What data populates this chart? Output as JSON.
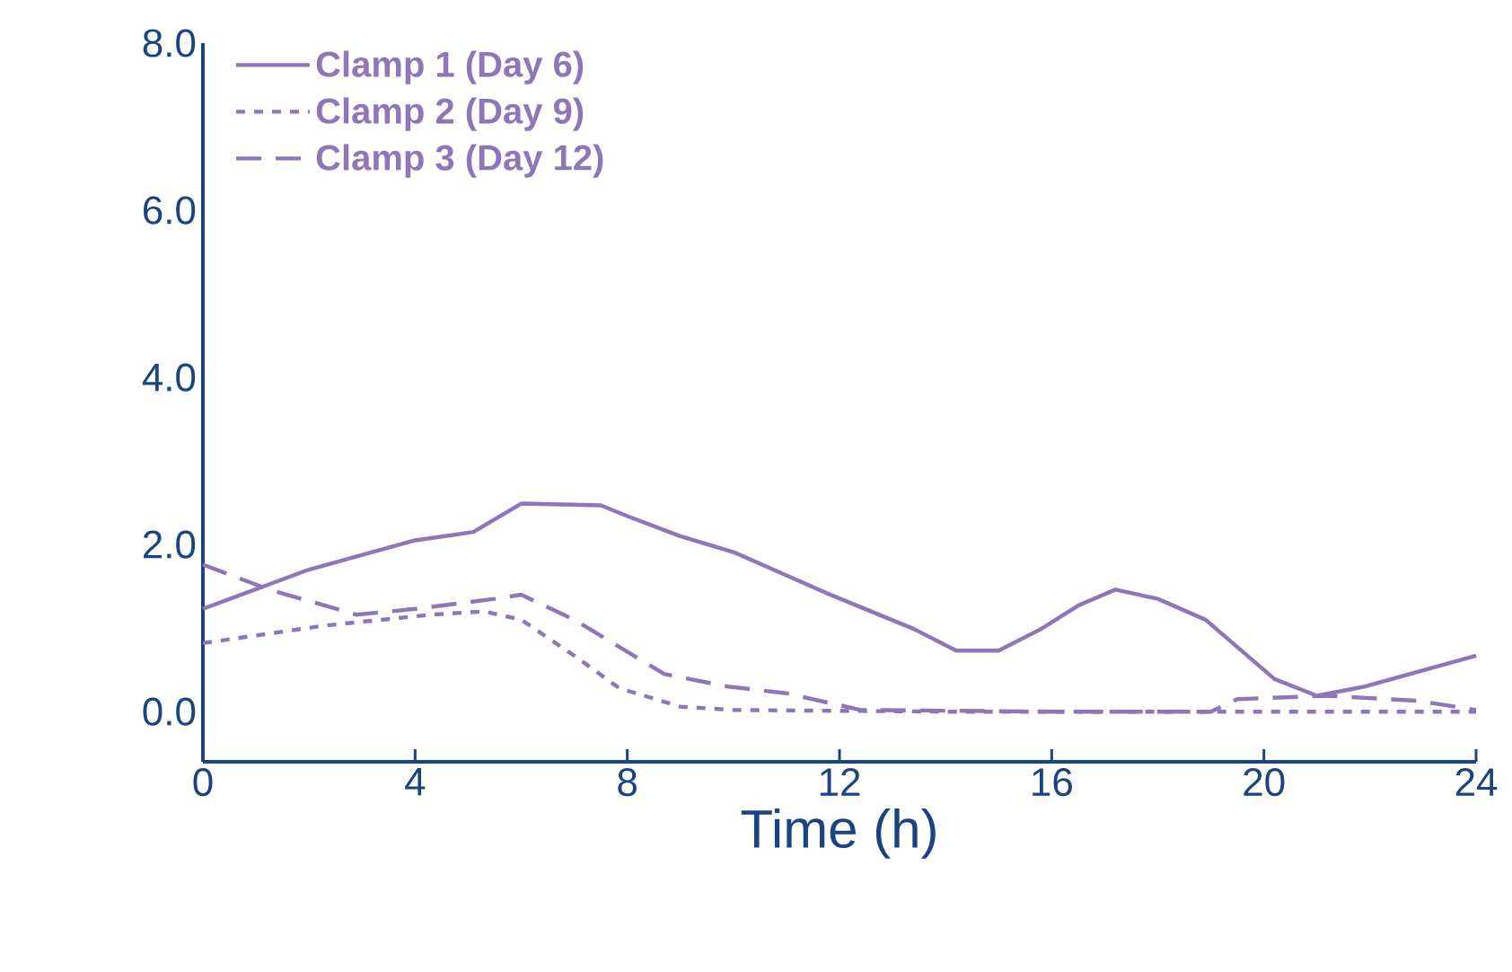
{
  "chart_data": {
    "type": "line",
    "xlabel": "Time (h)",
    "xlim": [
      0,
      24
    ],
    "ylim": [
      -0.6,
      8
    ],
    "xticks": [
      0,
      4,
      8,
      12,
      16,
      20,
      24
    ],
    "yticks": [
      {
        "value": 0,
        "label": "0.0"
      },
      {
        "value": 2,
        "label": "2.0"
      },
      {
        "value": 4,
        "label": "4.0"
      },
      {
        "value": 6,
        "label": "6.0"
      },
      {
        "value": 8,
        "label": "8.0"
      }
    ],
    "legend": "top left",
    "grid": false,
    "marker": "none",
    "series": [
      {
        "name": "Clamp 1 (Day 6)",
        "color": "#8e76b8",
        "line_style": "solid",
        "x": [
          0,
          2,
          4,
          5.1,
          6,
          7.5,
          8,
          9,
          10,
          11.75,
          13.4,
          14.2,
          15,
          15.8,
          16.5,
          17.2,
          18,
          18.9,
          20.2,
          21,
          21.9,
          24
        ],
        "values": [
          1.23,
          1.7,
          2.05,
          2.15,
          2.49,
          2.47,
          2.34,
          2.1,
          1.91,
          1.42,
          0.99,
          0.73,
          0.73,
          0.99,
          1.27,
          1.46,
          1.35,
          1.1,
          0.39,
          0.19,
          0.3,
          0.67
        ]
      },
      {
        "name": "Clamp 2 (Day 9)",
        "color": "#8e76b8",
        "line_style": "dotted",
        "x": [
          0,
          2.3,
          4.3,
          5.3,
          6,
          7,
          7.85,
          9,
          10,
          14,
          18,
          24
        ],
        "values": [
          0.82,
          1.03,
          1.16,
          1.2,
          1.1,
          0.67,
          0.28,
          0.06,
          0.02,
          0,
          0,
          0
        ]
      },
      {
        "name": "Clamp 3 (Day 12)",
        "color": "#8e76b8",
        "line_style": "dashed",
        "x": [
          0,
          1.25,
          2.9,
          4,
          5.5,
          6,
          7,
          8.7,
          9.9,
          11,
          12.4,
          16,
          19,
          19.5,
          21.2,
          22.9,
          24
        ],
        "values": [
          1.76,
          1.46,
          1.16,
          1.23,
          1.35,
          1.4,
          1.1,
          0.45,
          0.3,
          0.22,
          0.02,
          0,
          0,
          0.15,
          0.19,
          0.13,
          0.02
        ]
      }
    ]
  }
}
